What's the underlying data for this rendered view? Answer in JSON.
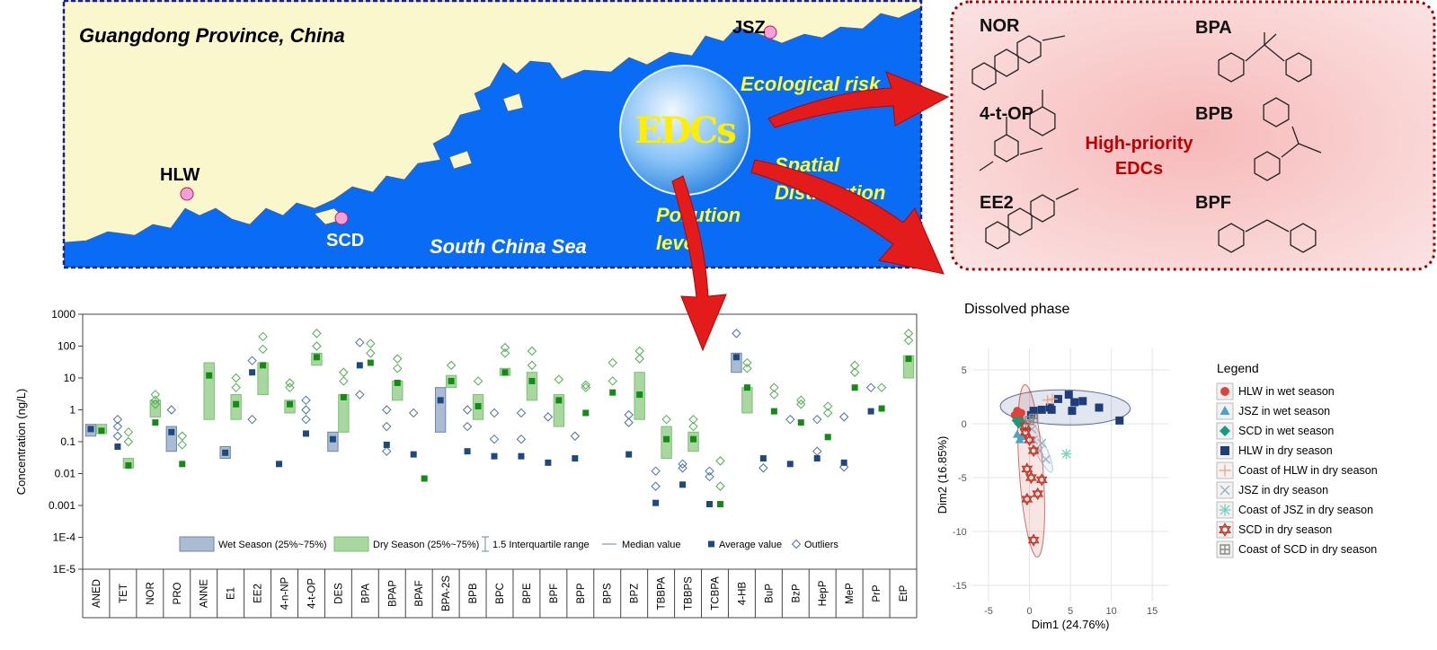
{
  "map": {
    "region": "Guangdong Province, China",
    "sites": [
      "JSZ",
      "HLW",
      "SCD"
    ],
    "sea": "South China Sea",
    "center": "EDCs",
    "arrows": [
      "Ecological risk",
      "Spatial Distribution",
      "Pollution level"
    ]
  },
  "structures": {
    "compounds": [
      "NOR",
      "BPA",
      "4-t-OP",
      "BPB",
      "EE2",
      "BPF"
    ],
    "label": "High-priority EDCs"
  },
  "chart_data": [
    {
      "type": "box",
      "ylabel": "Concentration (ng/L)",
      "log_scale": true,
      "ylim": [
        1e-05,
        1000
      ],
      "yticks": [
        1000,
        100,
        10,
        1,
        0.1,
        0.01,
        0.001,
        {
          "value": 0.0001,
          "label": "1E-4"
        },
        {
          "value": 1e-05,
          "label": "1E-5"
        }
      ],
      "categories": [
        "ANED",
        "TET",
        "NOR",
        "PRO",
        "ANNE",
        "E1",
        "EE2",
        "4-n-NP",
        "4-t-OP",
        "DES",
        "BPA",
        "BPAP",
        "BPAF",
        "BPA-2S",
        "BPB",
        "BPC",
        "BPE",
        "BPF",
        "BPP",
        "BPS",
        "BPZ",
        "TBBPA",
        "TBBPS",
        "TCBPA",
        "4-HB",
        "BuP",
        "BzP",
        "HepP",
        "MeP",
        "PrP",
        "EtP"
      ],
      "series": [
        {
          "name": "Wet Season (25%~75%)",
          "color": "#a9bcd3",
          "mean_color": "#1f497d",
          "outlier_color": "#4a6fa5",
          "q1": [
            0.15,
            null,
            null,
            0.05,
            null,
            0.03,
            null,
            null,
            null,
            0.05,
            null,
            null,
            null,
            0.2,
            null,
            null,
            null,
            null,
            null,
            null,
            null,
            null,
            null,
            null,
            15,
            null,
            null,
            null,
            null,
            null,
            null
          ],
          "q3": [
            0.35,
            null,
            null,
            0.3,
            null,
            0.07,
            null,
            null,
            null,
            0.2,
            null,
            null,
            null,
            5,
            null,
            null,
            null,
            null,
            null,
            null,
            null,
            null,
            null,
            null,
            60,
            null,
            null,
            null,
            null,
            null,
            null
          ],
          "mean": [
            0.25,
            0.07,
            null,
            0.2,
            null,
            0.045,
            15,
            0.02,
            0.18,
            0.12,
            25,
            0.08,
            0.04,
            2,
            0.05,
            0.035,
            0.035,
            0.022,
            0.03,
            null,
            0.04,
            0.0012,
            0.0045,
            0.0011,
            45,
            0.03,
            0.02,
            0.03,
            0.022,
            0.9,
            null
          ],
          "outliers": [
            [],
            [
              0.5,
              0.3,
              0.15
            ],
            [],
            [
              1
            ],
            [],
            [],
            [
              35,
              0.5
            ],
            [],
            [
              2,
              1,
              0.5
            ],
            [],
            [
              130,
              3
            ],
            [
              1,
              0.3,
              0.05
            ],
            [
              0.8
            ],
            [],
            [
              1,
              0.3
            ],
            [
              0.8,
              0.12
            ],
            [
              0.8,
              0.12
            ],
            [
              0.6
            ],
            [
              0.15
            ],
            [],
            [
              0.7,
              0.4
            ],
            [
              0.012,
              0.004
            ],
            [
              0.02,
              0.015
            ],
            [
              0.012,
              0.008
            ],
            [
              250
            ],
            [
              0.015
            ],
            [
              0.5
            ],
            [
              0.5,
              0.05
            ],
            [
              0.6,
              0.016
            ],
            [
              5
            ],
            []
          ]
        },
        {
          "name": "Dry Season (25%~75%)",
          "color": "#a8d8a0",
          "mean_color": "#168a16",
          "outlier_color": "#4caf50",
          "q1": [
            0.18,
            0.015,
            0.6,
            null,
            0.5,
            0.5,
            3,
            0.8,
            25,
            0.2,
            null,
            2,
            null,
            5,
            0.5,
            12,
            2,
            0.3,
            null,
            null,
            0.5,
            0.03,
            0.05,
            null,
            0.8,
            null,
            null,
            null,
            null,
            null,
            10
          ],
          "q3": [
            0.35,
            0.03,
            2,
            null,
            30,
            3,
            30,
            2,
            60,
            3,
            null,
            8,
            null,
            12,
            3,
            20,
            15,
            3,
            null,
            null,
            15,
            0.3,
            0.2,
            null,
            5,
            null,
            null,
            null,
            null,
            null,
            50
          ],
          "mean": [
            0.22,
            0.018,
            0.4,
            0.02,
            12,
            1.5,
            25,
            1.5,
            45,
            2.5,
            30,
            7,
            0.007,
            8,
            1.3,
            15,
            8,
            2,
            0.8,
            3.5,
            3,
            0.12,
            0.12,
            0.0011,
            5,
            0.9,
            0.4,
            0.14,
            5,
            1.1,
            40
          ],
          "outliers": [
            [],
            [
              0.2,
              0.1
            ],
            [
              3,
              2,
              1.5
            ],
            [
              0.15,
              0.08
            ],
            [],
            [
              10,
              5
            ],
            [
              200,
              80
            ],
            [
              7,
              5
            ],
            [
              250,
              100
            ],
            [
              15,
              8
            ],
            [
              120,
              60
            ],
            [
              40,
              20
            ],
            [],
            [
              25
            ],
            [
              8
            ],
            [
              90,
              60
            ],
            [
              70,
              25
            ],
            [
              9
            ],
            [
              6,
              5
            ],
            [
              30,
              8
            ],
            [
              70,
              40
            ],
            [
              0.5
            ],
            [
              0.5,
              0.3
            ],
            [
              0.025,
              0.004
            ],
            [
              30,
              20
            ],
            [
              5,
              3
            ],
            [
              2,
              1.5
            ],
            [
              1.3,
              0.8
            ],
            [
              25,
              15
            ],
            [
              5
            ],
            [
              250,
              150
            ]
          ]
        }
      ],
      "legend_items": [
        "1.5 Interquartile range",
        "Median value",
        "Average value",
        "Outliers"
      ]
    },
    {
      "type": "scatter",
      "title": "Dissolved phase",
      "xlabel": "Dim1 (24.76%)",
      "ylabel": "Dim2 (16.85%)",
      "xlim": [
        -7,
        17
      ],
      "ylim": [
        -16.5,
        7
      ],
      "xticks": [
        -5,
        0,
        5,
        10,
        15
      ],
      "yticks": [
        -15,
        -10,
        -5,
        0,
        5
      ],
      "grid": true,
      "legend_title": "Legend",
      "series": [
        {
          "name": "HLW in wet season",
          "color": "#e0413a",
          "marker": "circle",
          "x": [
            -1.5,
            -1.8,
            -1.2,
            -1.0
          ],
          "y": [
            1.2,
            0.8,
            0.5,
            1.0
          ]
        },
        {
          "name": "JSZ in wet season",
          "color": "#4aa3c9",
          "marker": "triangle",
          "x": [
            -1.5,
            -1.2,
            -0.8
          ],
          "y": [
            -1.0,
            -1.5,
            -1.2
          ]
        },
        {
          "name": "SCD in wet season",
          "color": "#1a9a7a",
          "marker": "diamond",
          "x": [
            -1.6,
            -1.3,
            -1.0
          ],
          "y": [
            0.3,
            0.0,
            0.2
          ]
        },
        {
          "name": "HLW in dry season",
          "color": "#1f3d7a",
          "marker": "square",
          "ellipse": true,
          "x": [
            0.5,
            1.5,
            2.5,
            3.5,
            4.8,
            5.5,
            5.2,
            6.5,
            8.5,
            11,
            0.2,
            2.7
          ],
          "y": [
            1.2,
            1.3,
            1.5,
            2.3,
            2.7,
            2.0,
            1.2,
            2.1,
            1.5,
            0.3,
            0.8,
            1.3
          ]
        },
        {
          "name": "Coast of HLW in dry season",
          "color": "#f4a582",
          "marker": "plus",
          "x": [
            2.2,
            2.8
          ],
          "y": [
            2.2,
            2.3
          ]
        },
        {
          "name": "JSZ in dry season",
          "color": "#9aaec8",
          "marker": "x",
          "ellipse": true,
          "x": [
            0.5,
            1.2,
            2.0,
            0.3,
            1.5
          ],
          "y": [
            -1.5,
            -2.5,
            -3.3,
            -0.5,
            -1.8
          ]
        },
        {
          "name": "Coast of JSZ in dry season",
          "color": "#7fd1c1",
          "marker": "asterisk",
          "x": [
            4.5
          ],
          "y": [
            -2.8
          ]
        },
        {
          "name": "SCD in dry season",
          "color": "#c0392b",
          "marker": "star",
          "ellipse": true,
          "x": [
            -0.5,
            0,
            0.5,
            -0.3,
            0.2,
            1.5,
            -0.3,
            1.0,
            0.5,
            -0.5
          ],
          "y": [
            -0.8,
            -1.5,
            -2.5,
            -4.2,
            -5.0,
            -5.2,
            -7.0,
            -6.5,
            -10.8,
            -0.2
          ]
        },
        {
          "name": "Coast of SCD in dry season",
          "color": "#8a8a8a",
          "marker": "boxplus",
          "x": [
            0,
            0.5
          ],
          "y": [
            0.3,
            0.5
          ]
        }
      ]
    }
  ]
}
